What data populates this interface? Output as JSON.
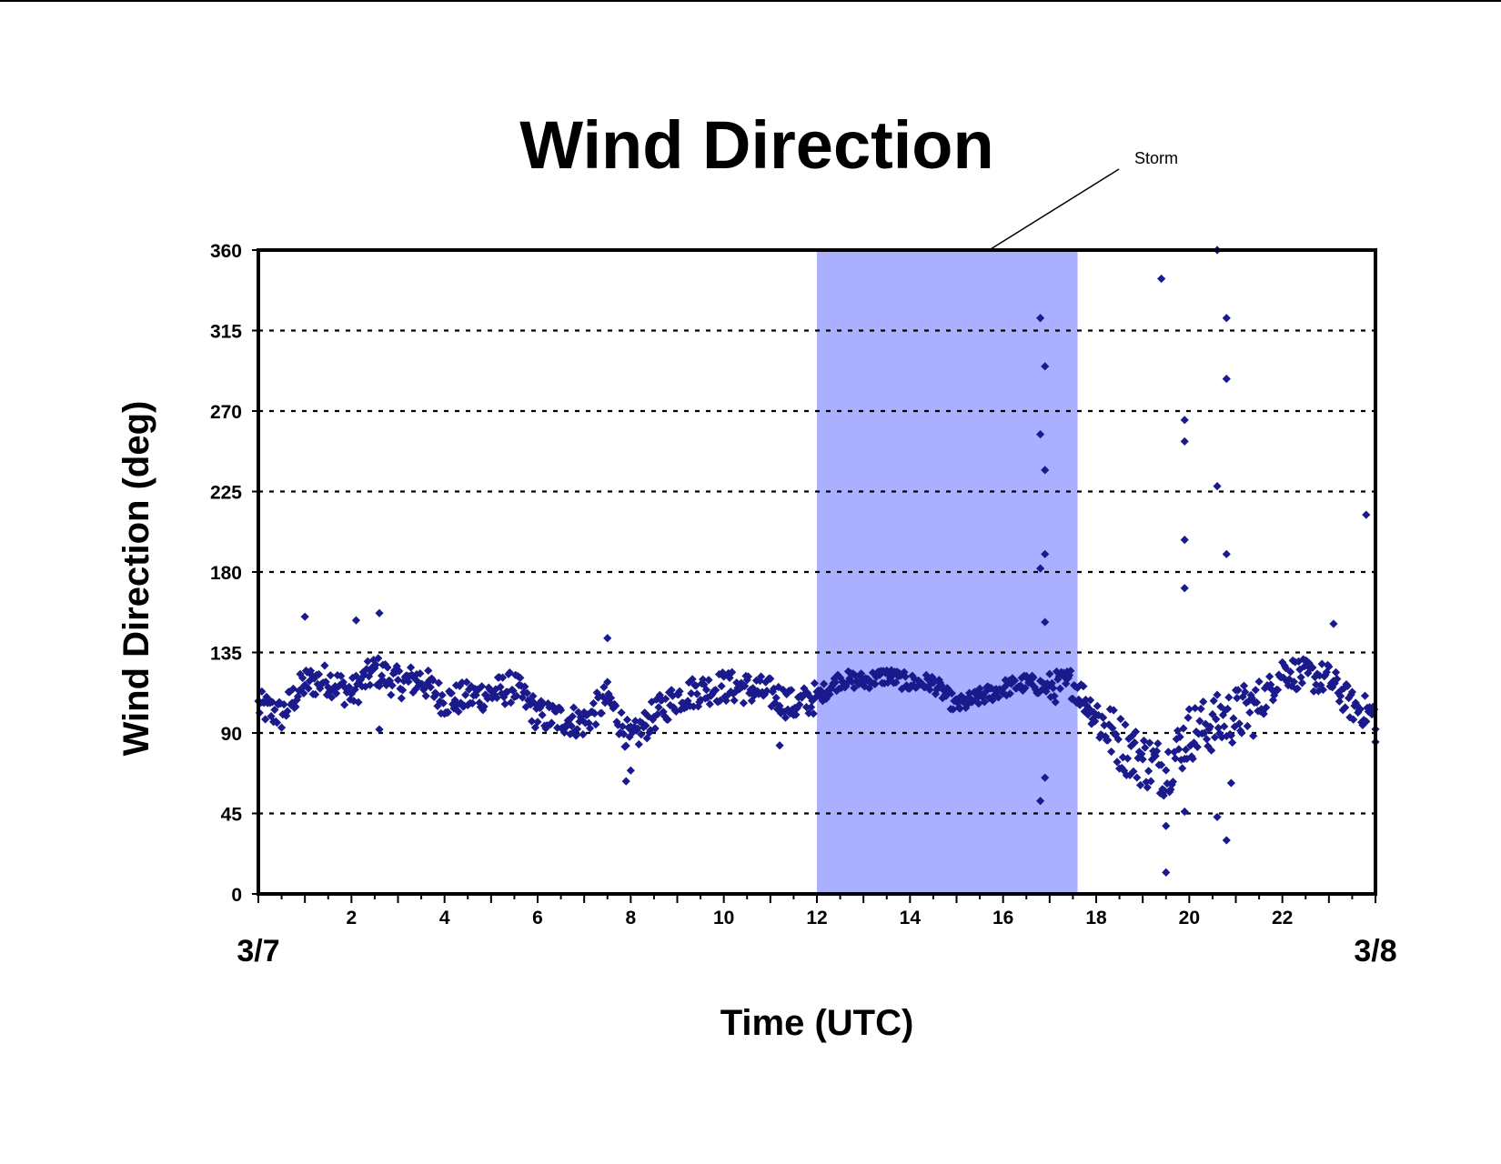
{
  "chart_data": {
    "type": "scatter",
    "title": "Wind Direction",
    "xlabel": "Time (UTC)",
    "ylabel": "Wind Direction (deg)",
    "xlim": [
      0,
      24
    ],
    "ylim": [
      0,
      360
    ],
    "x_ticks": [
      2,
      4,
      6,
      8,
      10,
      12,
      14,
      16,
      18,
      20,
      22
    ],
    "x_minor_tick_step": 0.5,
    "y_ticks": [
      0,
      45,
      90,
      135,
      180,
      225,
      270,
      315,
      360
    ],
    "date_labels": {
      "start": "3/7",
      "end": "3/8"
    },
    "grid": "horizontal dotted",
    "legend": "none",
    "marker": "diamond",
    "point_color": "#1a1a8c",
    "highlight": {
      "label": "Storm",
      "x_start": 12,
      "x_end": 17.6,
      "color": "#aab0ff"
    },
    "trend": [
      [
        0,
        105
      ],
      [
        0.5,
        100
      ],
      [
        1,
        118
      ],
      [
        1.5,
        120
      ],
      [
        2,
        112
      ],
      [
        2.5,
        125
      ],
      [
        3,
        118
      ],
      [
        3.5,
        120
      ],
      [
        4,
        108
      ],
      [
        4.5,
        110
      ],
      [
        5,
        112
      ],
      [
        5.5,
        116
      ],
      [
        6,
        100
      ],
      [
        6.5,
        98
      ],
      [
        7,
        96
      ],
      [
        7.5,
        110
      ],
      [
        8,
        85
      ],
      [
        8.5,
        100
      ],
      [
        9,
        110
      ],
      [
        9.5,
        114
      ],
      [
        10,
        116
      ],
      [
        10.5,
        115
      ],
      [
        11,
        112
      ],
      [
        11.5,
        105
      ],
      [
        12,
        110
      ],
      [
        12.5,
        120
      ],
      [
        13,
        119
      ],
      [
        13.5,
        122
      ],
      [
        14,
        118
      ],
      [
        14.5,
        118
      ],
      [
        15,
        105
      ],
      [
        15.5,
        110
      ],
      [
        16,
        115
      ],
      [
        16.5,
        118
      ],
      [
        17,
        115
      ],
      [
        17.5,
        118
      ],
      [
        18,
        100
      ],
      [
        18.5,
        85
      ],
      [
        19,
        75
      ],
      [
        19.5,
        70
      ],
      [
        20,
        90
      ],
      [
        20.5,
        95
      ],
      [
        21,
        100
      ],
      [
        21.5,
        105
      ],
      [
        22,
        125
      ],
      [
        22.5,
        122
      ],
      [
        23,
        120
      ],
      [
        23.5,
        105
      ],
      [
        24,
        100
      ]
    ],
    "outliers": [
      [
        1.0,
        155
      ],
      [
        2.1,
        153
      ],
      [
        2.6,
        157
      ],
      [
        2.6,
        92
      ],
      [
        7.5,
        143
      ],
      [
        7.9,
        63
      ],
      [
        8.0,
        69
      ],
      [
        11.2,
        83
      ],
      [
        16.8,
        322
      ],
      [
        16.9,
        295
      ],
      [
        16.8,
        257
      ],
      [
        16.9,
        237
      ],
      [
        16.9,
        190
      ],
      [
        16.8,
        182
      ],
      [
        16.9,
        152
      ],
      [
        16.8,
        52
      ],
      [
        16.9,
        65
      ],
      [
        19.4,
        344
      ],
      [
        19.5,
        12
      ],
      [
        19.5,
        38
      ],
      [
        19.9,
        265
      ],
      [
        19.9,
        253
      ],
      [
        19.9,
        198
      ],
      [
        19.9,
        171
      ],
      [
        19.9,
        46
      ],
      [
        20.6,
        360
      ],
      [
        20.8,
        322
      ],
      [
        20.8,
        288
      ],
      [
        20.6,
        228
      ],
      [
        20.8,
        190
      ],
      [
        20.6,
        43
      ],
      [
        20.8,
        30
      ],
      [
        20.9,
        62
      ],
      [
        23.1,
        151
      ],
      [
        23.8,
        212
      ],
      [
        24.0,
        85
      ]
    ]
  }
}
